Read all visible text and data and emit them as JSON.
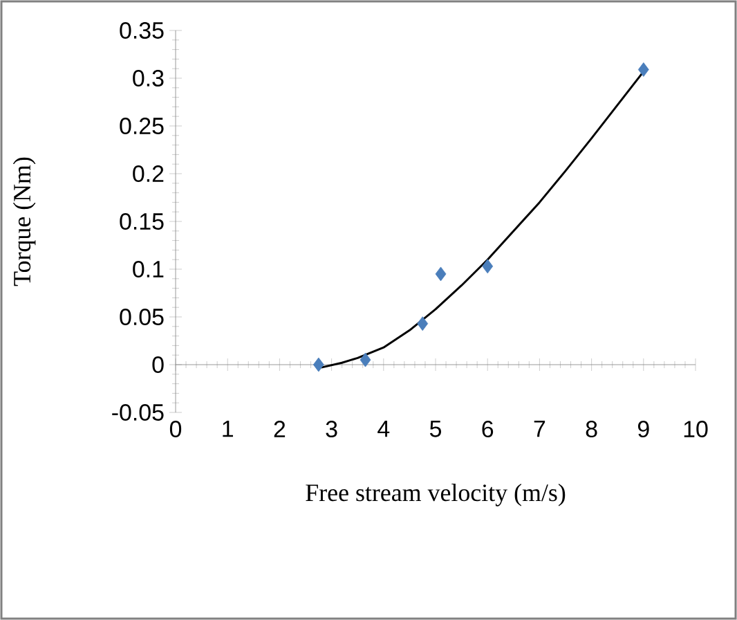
{
  "chart_data": {
    "type": "scatter",
    "xlabel": "Free stream velocity (m/s)",
    "ylabel": "Torque (Nm)",
    "xlim": [
      0,
      10
    ],
    "ylim": [
      -0.05,
      0.35
    ],
    "xticks": [
      0,
      1,
      2,
      3,
      4,
      5,
      6,
      7,
      8,
      9,
      10
    ],
    "yticks": [
      -0.05,
      0,
      0.05,
      0.1,
      0.15,
      0.2,
      0.25,
      0.3,
      0.35
    ],
    "grid": false,
    "series": [
      {
        "marker": "diamond",
        "color": "#4a7ebb",
        "x": [
          2.75,
          3.65,
          4.75,
          5.1,
          6.0,
          9.0
        ],
        "values": [
          0.0,
          0.005,
          0.043,
          0.095,
          0.103,
          0.309
        ]
      },
      {
        "type": "line",
        "marker": "none",
        "line_style": "solid",
        "color": "#000000",
        "x": [
          2.8,
          3.2,
          3.5,
          4,
          4.5,
          5,
          5.5,
          6,
          6.5,
          7,
          7.5,
          8,
          8.5,
          9
        ],
        "values": [
          -0.003,
          0.002,
          0.007,
          0.018,
          0.036,
          0.058,
          0.083,
          0.11,
          0.14,
          0.17,
          0.203,
          0.237,
          0.272,
          0.307
        ]
      }
    ]
  }
}
